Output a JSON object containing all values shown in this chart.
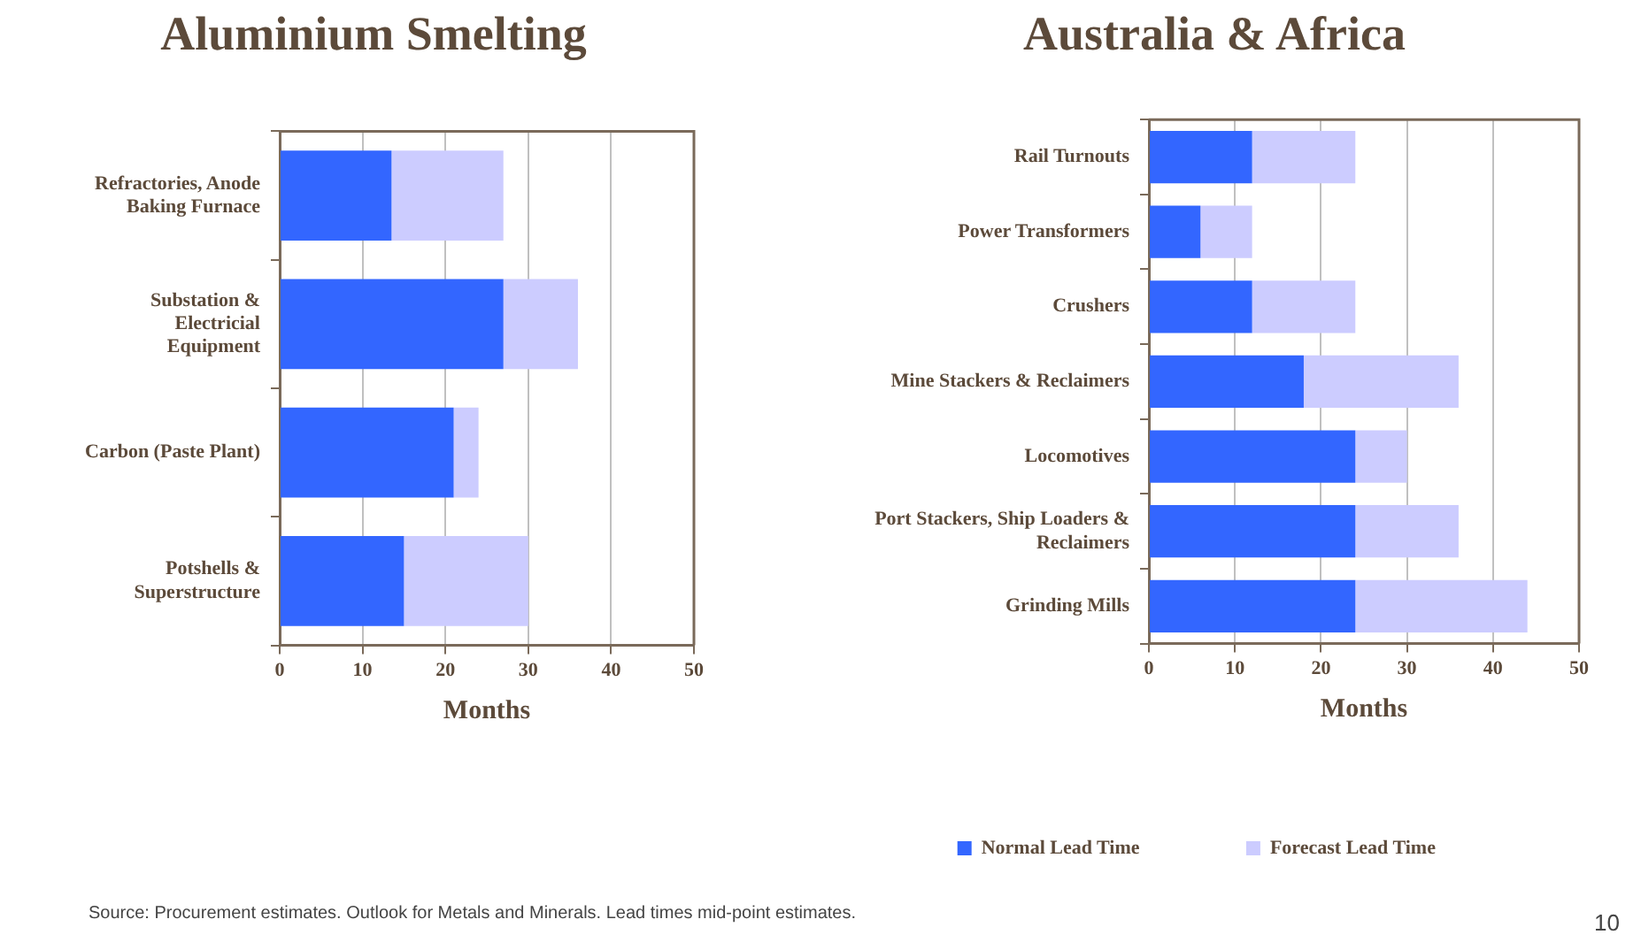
{
  "chart_data": [
    {
      "type": "bar",
      "orientation": "horizontal",
      "stacked": true,
      "title": "Aluminium Smelting",
      "xlabel": "Months",
      "categories": [
        "Refractories, Anode Baking Furnace",
        "Substation & Electricial Equipment",
        "Carbon (Paste Plant)",
        "Potshells & Superstructure"
      ],
      "series": [
        {
          "color": "#3366ff",
          "values": [
            13.5,
            27,
            21,
            15
          ]
        },
        {
          "color": "#ccccff",
          "values": [
            13.5,
            9,
            3,
            15
          ]
        }
      ],
      "xlim": [
        0,
        50
      ],
      "xticks": [
        0,
        10,
        20,
        30,
        40,
        50
      ],
      "grid": "x"
    },
    {
      "type": "bar",
      "orientation": "horizontal",
      "stacked": true,
      "title": "Australia & Africa",
      "xlabel": "Months",
      "categories": [
        "Rail Turnouts",
        "Power Transformers",
        "Crushers",
        "Mine Stackers & Reclaimers",
        "Locomotives",
        "Port Stackers, Ship Loaders & Reclaimers",
        "Grinding Mills"
      ],
      "series": [
        {
          "name": "Normal Lead Time",
          "color": "#3366ff",
          "values": [
            12,
            6,
            12,
            18,
            24,
            24,
            24
          ]
        },
        {
          "name": "Forecast Lead Time",
          "color": "#ccccff",
          "values": [
            12,
            6,
            12,
            18,
            6,
            12,
            20
          ]
        }
      ],
      "xlim": [
        0,
        50
      ],
      "xticks": [
        0,
        10,
        20,
        30,
        40,
        50
      ],
      "grid": "x",
      "legend": "bottom",
      "annotations": [
        "Source: Procurement estimates. Outlook for Metals and Minerals. Lead times mid-point estimates.",
        "10"
      ]
    }
  ]
}
